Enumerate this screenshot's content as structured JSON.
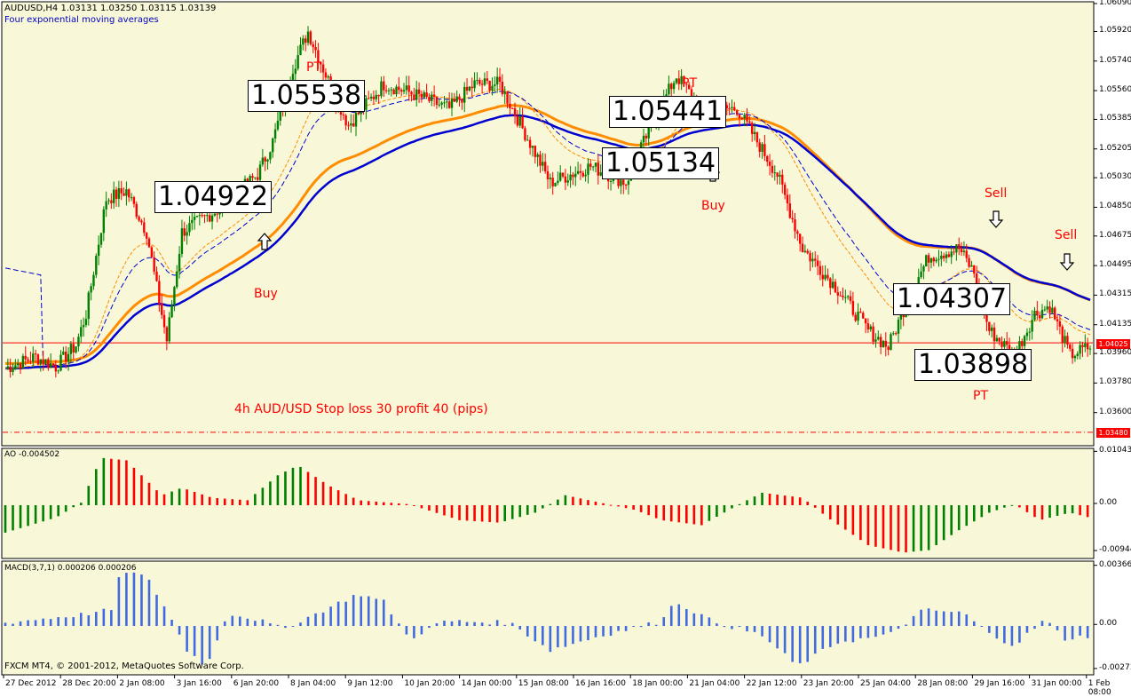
{
  "chart_data": {
    "type": "candlestick",
    "symbol_header": "AUDUSD,H4  1.03131 1.03250 1.03115 1.03139",
    "indicator_header": "Four exponential moving averages",
    "footer": "FXCM MT4, © 2001-2012, MetaQuotes Software Corp.",
    "main_price_ticks": [
      "1.06090",
      "1.05920",
      "1.05740",
      "1.05560",
      "1.05385",
      "1.05205",
      "1.05030",
      "1.04850",
      "1.04675",
      "1.04495",
      "1.04315",
      "1.04135",
      "1.03960",
      "1.03780",
      "1.03600"
    ],
    "price_range": [
      1.0342,
      1.0609
    ],
    "horizontal_lines": [
      {
        "price": 1.04025,
        "label": "1.04025",
        "style": "solid",
        "color": "#ff0000"
      },
      {
        "price": 1.0348,
        "label": "1.03480",
        "style": "dashdot",
        "color": "#ff0000"
      }
    ],
    "x_labels": [
      "27 Dec 2012",
      "28 Dec 20:00",
      "2 Jan 08:00",
      "3 Jan 16:00",
      "6 Jan 20:00",
      "8 Jan 04:00",
      "9 Jan 12:00",
      "10 Jan 20:00",
      "14 Jan 00:00",
      "15 Jan 08:00",
      "16 Jan 16:00",
      "18 Jan 00:00",
      "21 Jan 04:00",
      "22 Jan 12:00",
      "23 Jan 20:00",
      "25 Jan 04:00",
      "28 Jan 08:00",
      "29 Jan 16:00",
      "31 Jan 00:00",
      "1 Feb 08:00"
    ],
    "annotations": {
      "price_boxes": [
        "1.05538",
        "1.04922",
        "1.05441",
        "1.05134",
        "1.04307",
        "1.03898"
      ],
      "pt_labels": [
        "PT",
        "PT",
        "PT"
      ],
      "buy_labels": [
        "Buy",
        "Buy"
      ],
      "sell_labels": [
        "Sell",
        "Sell"
      ],
      "note": "4h AUD/USD  Stop loss 30 profit 40 (pips)"
    },
    "ao": {
      "header": "AO -0.004502",
      "ticks": [
        "0.010438",
        "0.00",
        "-0.00944"
      ],
      "range": [
        -0.0105,
        0.0105
      ]
    },
    "macd": {
      "header": "MACD(3,7,1) 0.000206 0.000206",
      "ticks": [
        "0.003664",
        "0.00",
        "-0.00273"
      ],
      "range": [
        -0.0029,
        0.0037
      ]
    }
  },
  "colors": {
    "panel_bg": "#f8f8d8",
    "bull": "#008000",
    "bear": "#ff0000",
    "ema_slow_orange": "#ff8c00",
    "ema_slow_blue": "#0000d0",
    "macd_bar": "#4169e1"
  }
}
